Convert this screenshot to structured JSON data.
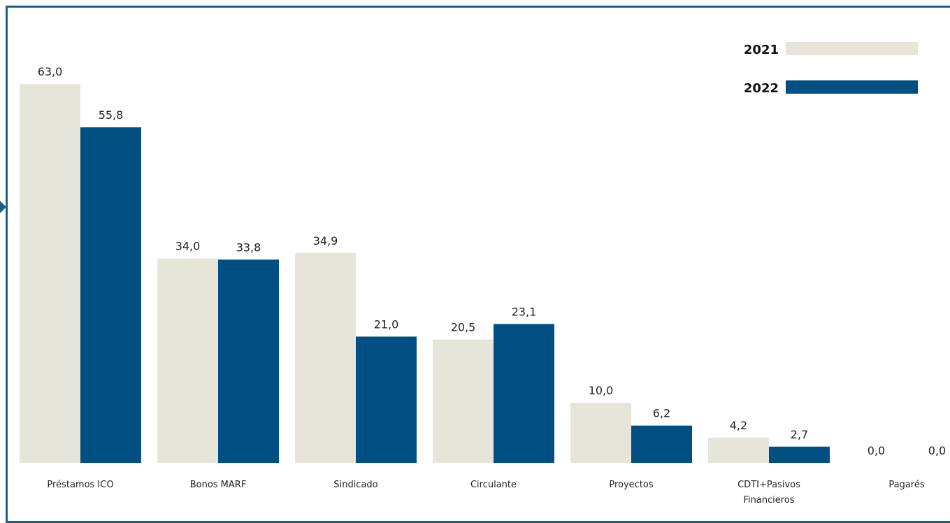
{
  "chart_data": {
    "type": "bar",
    "categories": [
      "Préstamos ICO",
      "Bonos MARF",
      "Sindicado",
      "Circulante",
      "Proyectos",
      "CDTI+Pasivos Financieros",
      "Pagarés"
    ],
    "category_lines": [
      [
        "Préstamos ICO"
      ],
      [
        "Bonos MARF"
      ],
      [
        "Sindicado"
      ],
      [
        "Circulante"
      ],
      [
        "Proyectos"
      ],
      [
        "CDTI+Pasivos",
        "Financieros"
      ],
      [
        "Pagarés"
      ]
    ],
    "series": [
      {
        "name": "2021",
        "values": [
          63.0,
          34.0,
          34.9,
          20.5,
          10.0,
          4.2,
          0.0
        ],
        "labels": [
          "63,0",
          "34,0",
          "34,9",
          "20,5",
          "10,0",
          "4,2",
          "0,0"
        ],
        "color": "#e7e5da"
      },
      {
        "name": "2022",
        "values": [
          55.8,
          33.8,
          21.0,
          23.1,
          6.2,
          2.7,
          0.0
        ],
        "labels": [
          "55,8",
          "33,8",
          "21,0",
          "23,1",
          "6,2",
          "2,7",
          "0,0"
        ],
        "color": "#004f82"
      }
    ],
    "title": "",
    "xlabel": "",
    "ylabel": "",
    "ylim": [
      0,
      65
    ],
    "grid": false,
    "legend": "top-right"
  }
}
